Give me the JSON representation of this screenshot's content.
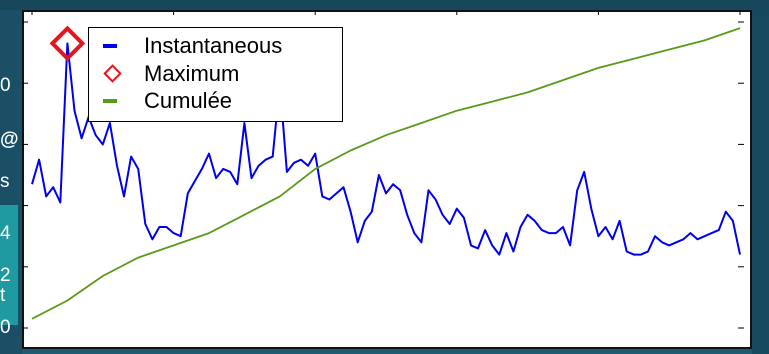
{
  "edge_glyphs": [
    "0",
    "@",
    "s",
    "4",
    "2",
    "t",
    "0"
  ],
  "chart_data": {
    "type": "line",
    "title": "",
    "xlabel": "",
    "ylabel": "",
    "grid": false,
    "legend_position": "top-left",
    "series": [
      {
        "name": "Instantaneous",
        "color": "#0000ee",
        "x": [
          0,
          1,
          2,
          3,
          4,
          5,
          6,
          7,
          8,
          9,
          10,
          11,
          12,
          13,
          14,
          15,
          16,
          17,
          18,
          19,
          20,
          21,
          22,
          23,
          24,
          25,
          26,
          27,
          28,
          29,
          30,
          31,
          32,
          33,
          34,
          35,
          36,
          37,
          38,
          39,
          40,
          41,
          42,
          43,
          44,
          45,
          46,
          47,
          48,
          49,
          50,
          51,
          52,
          53,
          54,
          55,
          56,
          57,
          58,
          59,
          60,
          61,
          62,
          63,
          64,
          65,
          66,
          67,
          68,
          69,
          70,
          71,
          72,
          73,
          74,
          75,
          76,
          77,
          78,
          79,
          80,
          81,
          82,
          83,
          84,
          85,
          86,
          87,
          88,
          89,
          90,
          91,
          92,
          93,
          94,
          95,
          96,
          97,
          98,
          99,
          100
        ],
        "y": [
          47,
          55,
          43,
          46,
          41,
          93,
          71,
          62,
          69,
          63,
          60,
          67,
          53,
          43,
          56,
          52,
          34,
          29,
          33,
          33,
          31,
          30,
          44,
          48,
          52,
          57,
          49,
          52,
          51,
          47,
          67,
          49,
          53,
          55,
          56,
          80,
          51,
          54,
          55,
          53,
          57,
          43,
          42,
          44,
          46,
          38,
          28,
          35,
          38,
          50,
          44,
          47,
          45,
          37,
          31,
          28,
          45,
          42,
          37,
          34,
          39,
          36,
          27,
          26,
          32,
          27,
          24,
          31,
          25,
          33,
          37,
          35,
          32,
          31,
          31,
          33,
          27,
          45,
          51,
          39,
          30,
          33,
          29,
          35,
          25,
          24,
          24,
          25,
          30,
          28,
          27,
          28,
          29,
          31,
          29,
          30,
          31,
          32,
          38,
          35,
          24
        ]
      },
      {
        "name": "Maximum",
        "color": "#e8141b",
        "x": [
          5
        ],
        "y": [
          93
        ]
      },
      {
        "name": "Cumulée",
        "color": "#5a9a1a",
        "x": [
          0,
          5,
          10,
          15,
          20,
          25,
          30,
          35,
          40,
          45,
          50,
          55,
          60,
          65,
          70,
          75,
          80,
          85,
          90,
          95,
          100
        ],
        "y": [
          3,
          9,
          17,
          23,
          27,
          31,
          37,
          43,
          52,
          58,
          63,
          67,
          71,
          74,
          77,
          81,
          85,
          88,
          91,
          94,
          98
        ]
      }
    ],
    "xlim": [
      0,
      100
    ],
    "ylim": [
      0,
      100
    ]
  }
}
